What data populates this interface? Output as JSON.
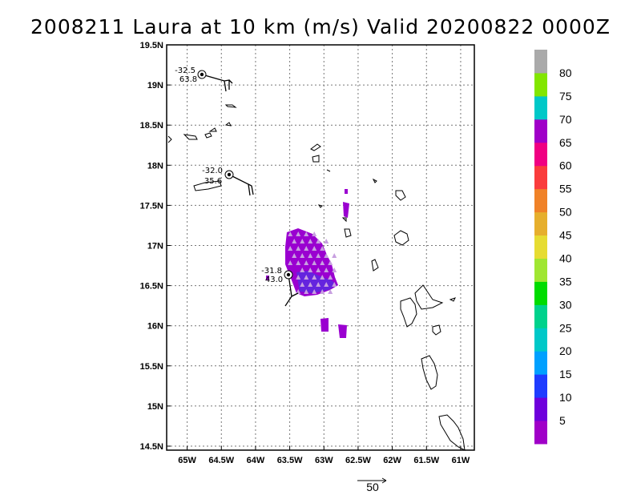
{
  "title": "2008211 Laura at 10 km (m/s) Valid 20200822 0000Z",
  "map": {
    "lon_range": [
      -65.3,
      -60.8
    ],
    "lat_range": [
      14.45,
      19.5
    ],
    "lat_ticks": [
      {
        "value": 19.5,
        "label": "19.5N"
      },
      {
        "value": 19,
        "label": "19N"
      },
      {
        "value": 18.5,
        "label": "18.5N"
      },
      {
        "value": 18,
        "label": "18N"
      },
      {
        "value": 17.5,
        "label": "17.5N"
      },
      {
        "value": 17,
        "label": "17N"
      },
      {
        "value": 16.5,
        "label": "16.5N"
      },
      {
        "value": 16,
        "label": "16N"
      },
      {
        "value": 15.5,
        "label": "15.5N"
      },
      {
        "value": 15,
        "label": "15N"
      },
      {
        "value": 14.5,
        "label": "14.5N"
      }
    ],
    "lon_ticks": [
      {
        "value": -65,
        "label": "65W"
      },
      {
        "value": -64.5,
        "label": "64.5W"
      },
      {
        "value": -64,
        "label": "64W"
      },
      {
        "value": -63.5,
        "label": "63.5W"
      },
      {
        "value": -63,
        "label": "63W"
      },
      {
        "value": -62.5,
        "label": "62.5W"
      },
      {
        "value": -62,
        "label": "62W"
      },
      {
        "value": -61.5,
        "label": "61.5W"
      },
      {
        "value": -61,
        "label": "61W"
      }
    ],
    "grid": true
  },
  "track_points": [
    {
      "lon": -64.75,
      "lat": 19.12,
      "temp": "-32.5",
      "value": "63.8"
    },
    {
      "lon": -64.35,
      "lat": 17.87,
      "temp": "-32.0",
      "value": "35.6"
    },
    {
      "lon": -63.47,
      "lat": 16.63,
      "temp": "-31.8",
      "value": "43.0"
    }
  ],
  "colorbar": {
    "labels": [
      "5",
      "10",
      "15",
      "20",
      "25",
      "30",
      "35",
      "40",
      "45",
      "50",
      "55",
      "60",
      "65",
      "70",
      "75",
      "80"
    ],
    "colors": [
      "#a000c8",
      "#6e00dc",
      "#1e3cff",
      "#00a0ff",
      "#00c8c8",
      "#00d28c",
      "#00dc00",
      "#a0e632",
      "#e6dc32",
      "#e6af2d",
      "#f08228",
      "#fa3c3c",
      "#f00082",
      "#a000c8",
      "#00c8c8",
      "#82e600",
      "#aaaaaa"
    ]
  },
  "vector_scale": {
    "label": "50"
  }
}
